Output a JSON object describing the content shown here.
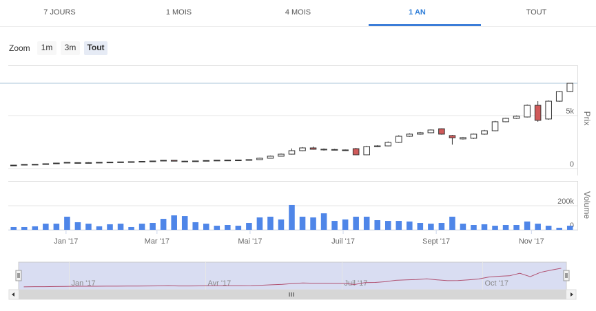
{
  "tabs": {
    "items": [
      "7 JOURS",
      "1 MOIS",
      "4 MOIS",
      "1 AN",
      "TOUT"
    ],
    "active": 3
  },
  "zoom": {
    "label": "Zoom",
    "buttons": [
      "1m",
      "3m",
      "Tout"
    ],
    "selected": 2
  },
  "chart_data": {
    "type": "candlestick",
    "open": [
      260,
      325,
      390,
      400,
      455,
      520,
      520,
      560,
      560,
      590,
      610,
      630,
      650,
      680,
      715,
      780,
      700,
      690,
      720,
      760,
      790,
      800,
      810,
      845,
      975,
      1170,
      1360,
      1690,
      1950,
      1760,
      1780,
      1720,
      1880,
      1300,
      2080,
      2140,
      2470,
      3050,
      3250,
      3380,
      3760,
      3120,
      2800,
      2860,
      3250,
      3570,
      4420,
      4740,
      4870,
      5970,
      4680,
      6360,
      7270
    ],
    "high": [
      330,
      400,
      420,
      470,
      540,
      600,
      580,
      600,
      610,
      630,
      650,
      670,
      700,
      740,
      800,
      800,
      730,
      740,
      780,
      810,
      820,
      830,
      870,
      1020,
      1220,
      1420,
      1900,
      2020,
      2080,
      1900,
      1860,
      1800,
      1950,
      2150,
      2200,
      2560,
      3150,
      3330,
      3450,
      3700,
      3800,
      3180,
      2990,
      3300,
      3650,
      4500,
      4800,
      5010,
      6050,
      6360,
      6430,
      7330,
      8050
    ],
    "low": [
      230,
      300,
      360,
      380,
      430,
      500,
      500,
      540,
      540,
      570,
      590,
      610,
      630,
      660,
      700,
      680,
      670,
      670,
      700,
      740,
      770,
      780,
      790,
      820,
      950,
      1140,
      1320,
      1640,
      1780,
      1700,
      1740,
      1680,
      1260,
      1260,
      2030,
      2100,
      2420,
      3000,
      3200,
      3330,
      3200,
      2260,
      2740,
      2800,
      3200,
      3520,
      4370,
      4690,
      4820,
      4420,
      4610,
      6310,
      7220
    ],
    "close": [
      325,
      390,
      400,
      455,
      520,
      585,
      560,
      560,
      590,
      610,
      630,
      650,
      680,
      715,
      780,
      700,
      690,
      720,
      760,
      790,
      800,
      810,
      845,
      975,
      1170,
      1360,
      1690,
      1950,
      1820,
      1830,
      1800,
      1760,
      1300,
      2080,
      2140,
      2470,
      3050,
      3250,
      3380,
      3640,
      3250,
      2900,
      2930,
      3250,
      3570,
      4420,
      4740,
      4940,
      5970,
      4550,
      6360,
      7270,
      8050
    ],
    "up_color": "#ffffff",
    "down_color": "#d05a5a",
    "stroke": "#333333",
    "xlim": [
      -0.5,
      52.5
    ],
    "xticks": [
      {
        "value": 4.9,
        "label": "Jan '17"
      },
      {
        "value": 13.4,
        "label": "Mar '17"
      },
      {
        "value": 22.1,
        "label": "Mai '17"
      },
      {
        "value": 30.8,
        "label": "Juil '17"
      },
      {
        "value": 39.5,
        "label": "Sept '17"
      },
      {
        "value": 48.4,
        "label": "Nov '17"
      }
    ],
    "ylim": [
      0,
      9740
    ],
    "yticks": [
      0,
      {
        "value": 5000,
        "label": "5k"
      }
    ],
    "ylabel": "Prix",
    "volume": {
      "values": [
        23000,
        23000,
        29000,
        51000,
        51000,
        109000,
        63000,
        51000,
        29000,
        46000,
        51000,
        23000,
        51000,
        57000,
        91000,
        120000,
        114000,
        63000,
        51000,
        34000,
        40000,
        34000,
        57000,
        103000,
        109000,
        86000,
        206000,
        109000,
        103000,
        137000,
        74000,
        86000,
        109000,
        109000,
        80000,
        74000,
        74000,
        69000,
        57000,
        51000,
        57000,
        109000,
        51000,
        40000,
        46000,
        34000,
        40000,
        40000,
        69000,
        51000,
        34000,
        17000,
        34000
      ],
      "color": "#4f86e8",
      "ylim": [
        0,
        400000
      ],
      "yticks": [
        0,
        {
          "value": 200000,
          "label": "200k"
        }
      ],
      "ylabel": "Volume"
    },
    "navigator": {
      "color": "#b05070",
      "xticks": [
        {
          "value": 4.4,
          "label": "Jan '17"
        },
        {
          "value": 17.6,
          "label": "Avr '17"
        },
        {
          "value": 30.8,
          "label": "Juil '17"
        },
        {
          "value": 44.4,
          "label": "Oct '17"
        }
      ]
    }
  }
}
